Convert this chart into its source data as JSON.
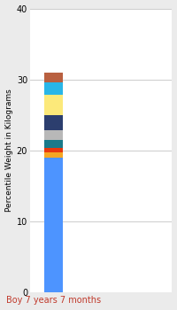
{
  "categories": [
    "Boy 7 years 7 months"
  ],
  "segments": [
    {
      "value": 19.0,
      "color": "#4d94ff"
    },
    {
      "value": 0.7,
      "color": "#f5a623"
    },
    {
      "value": 0.6,
      "color": "#e8380d"
    },
    {
      "value": 1.2,
      "color": "#1a7a8a"
    },
    {
      "value": 1.3,
      "color": "#b8b8b8"
    },
    {
      "value": 2.2,
      "color": "#2c3e6e"
    },
    {
      "value": 2.8,
      "color": "#fce97a"
    },
    {
      "value": 1.8,
      "color": "#29b6e8"
    },
    {
      "value": 1.4,
      "color": "#b96040"
    }
  ],
  "ylabel": "Percentile Weight in Kilograms",
  "ylim": [
    0,
    40
  ],
  "yticks": [
    0,
    10,
    20,
    30,
    40
  ],
  "bg_color": "#ebebeb",
  "plot_bg": "#ffffff",
  "xlabel_color": "#c0392b",
  "bar_width": 0.4
}
